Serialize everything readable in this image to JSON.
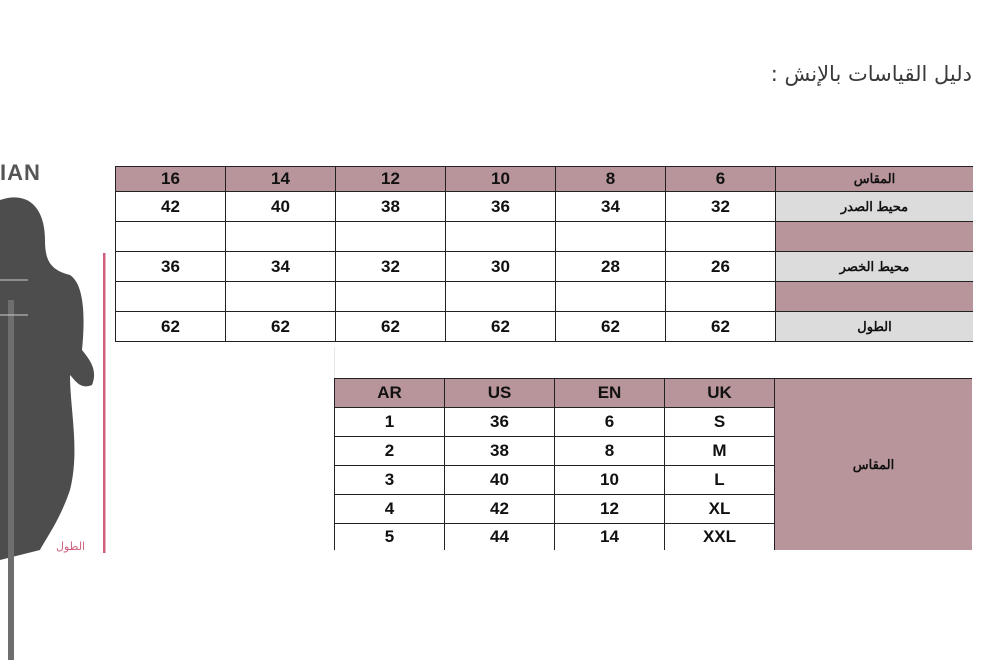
{
  "title": "دليل القياسات بالإنش :",
  "figure": {
    "brand_text": "IAN",
    "length_label": "الطول",
    "accent_color": "#d0607e"
  },
  "colors": {
    "header_mauve": "#b7959b",
    "label_gray": "#dcdcdc"
  },
  "size_table": {
    "header_label": "المقاس",
    "sizes": [
      "6",
      "8",
      "10",
      "12",
      "14",
      "16"
    ],
    "rows": [
      {
        "label": "محيط الصدر",
        "values": [
          "32",
          "34",
          "36",
          "38",
          "40",
          "42"
        ]
      },
      {
        "label": "",
        "values": [
          "",
          "",
          "",
          "",
          "",
          ""
        ]
      },
      {
        "label": "محيط الخصر",
        "values": [
          "26",
          "28",
          "30",
          "32",
          "34",
          "36"
        ]
      },
      {
        "label": "",
        "values": [
          "",
          "",
          "",
          "",
          "",
          ""
        ]
      },
      {
        "label": "الطول",
        "values": [
          "62",
          "62",
          "62",
          "62",
          "62",
          "62"
        ]
      }
    ]
  },
  "conversion_table": {
    "label": "المقاس",
    "headers": [
      "UK",
      "EN",
      "US",
      "AR"
    ],
    "rows": [
      [
        "S",
        "6",
        "36",
        "1"
      ],
      [
        "M",
        "8",
        "38",
        "2"
      ],
      [
        "L",
        "10",
        "40",
        "3"
      ],
      [
        "XL",
        "12",
        "42",
        "4"
      ],
      [
        "XXL",
        "14",
        "44",
        "5"
      ]
    ]
  }
}
